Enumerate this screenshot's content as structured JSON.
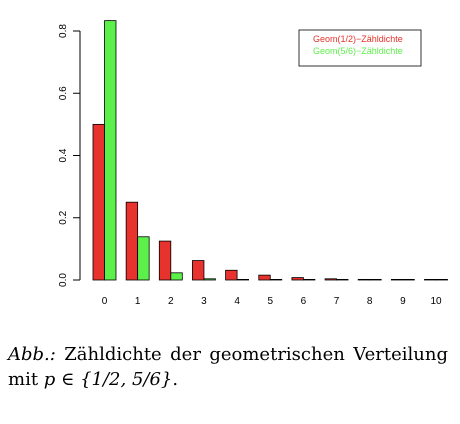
{
  "chart_data": {
    "type": "bar",
    "categories": [
      "0",
      "1",
      "2",
      "3",
      "4",
      "5",
      "6",
      "7",
      "8",
      "9",
      "10"
    ],
    "series": [
      {
        "name": "Geom(1/2)−Zähldichte",
        "color": "#e8322d",
        "values": [
          0.5,
          0.25,
          0.125,
          0.0625,
          0.03125,
          0.015625,
          0.0078125,
          0.00390625,
          0.001953,
          0.000977,
          0.000488
        ]
      },
      {
        "name": "Geom(5/6)−Zähldichte",
        "color": "#5cf04a",
        "values": [
          0.8333,
          0.1389,
          0.0231,
          0.00386,
          0.00064,
          0.00011,
          2e-05,
          0.0,
          0.0,
          0.0,
          0.0
        ]
      }
    ],
    "yticks": [
      "0.0",
      "0.2",
      "0.4",
      "0.6",
      "0.8"
    ],
    "ylim": [
      0,
      0.85
    ],
    "legend_position": "top-right",
    "grid": false
  },
  "caption": {
    "label": "Abb.:",
    "text": "Zähldichte der geometrischen Verteilung mit",
    "math": "p ∈ {1/2, 5/6}",
    "end": "."
  }
}
